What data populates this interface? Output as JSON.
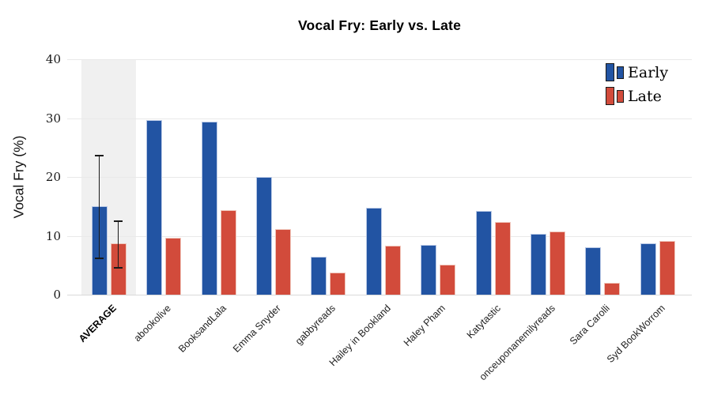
{
  "chart_data": {
    "type": "bar",
    "title": "Vocal Fry: Early vs. Late",
    "ylabel": "Vocal Fry (%)",
    "xlabel": "",
    "ylim": [
      0,
      40
    ],
    "yticks": [
      0,
      10,
      20,
      30,
      40
    ],
    "grid": true,
    "legend_position": "upper right",
    "categories": [
      "AVERAGE",
      "abookolive",
      "BooksandLala",
      "Emma Snyder",
      "gabbyreads",
      "Hailey in Bookland",
      "Haley Pham",
      "Katytastic",
      "onceuponanemilyreads",
      "Sara Carolli",
      "Syd BookWorrom"
    ],
    "series": [
      {
        "name": "Early",
        "color": "#2254a3",
        "edge_color": "#b9c9e6",
        "values": [
          15.0,
          29.6,
          29.4,
          20.0,
          6.4,
          14.8,
          8.4,
          14.2,
          10.3,
          8.0,
          8.7
        ]
      },
      {
        "name": "Late",
        "color": "#d24b3b",
        "edge_color": "#f0c6bb",
        "values": [
          8.7,
          9.7,
          14.3,
          11.2,
          3.8,
          8.3,
          5.1,
          12.4,
          10.7,
          2.0,
          9.1
        ]
      }
    ],
    "error_bars": {
      "category": "AVERAGE",
      "entries": [
        {
          "series": "Early",
          "low": 6.3,
          "high": 23.7
        },
        {
          "series": "Late",
          "low": 4.7,
          "high": 12.6
        }
      ]
    },
    "highlight": {
      "category": "AVERAGE",
      "band_color": "#f0f0f0",
      "bold_label": true
    }
  }
}
